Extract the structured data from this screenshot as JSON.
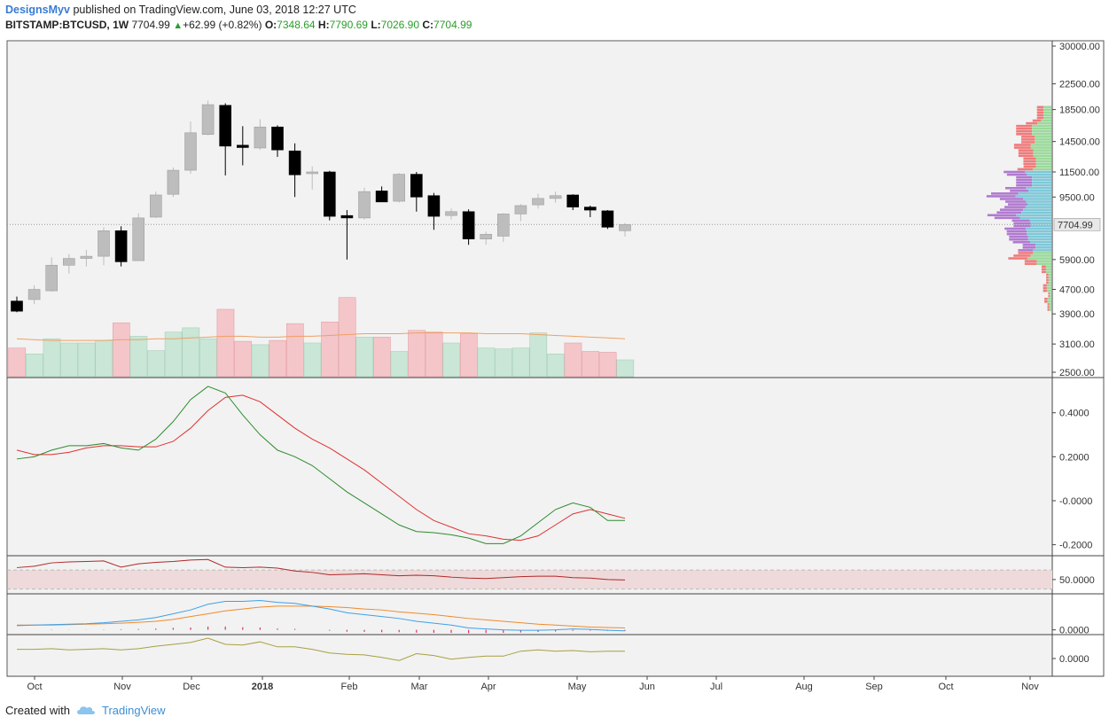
{
  "header": {
    "author": "DesignsMyv",
    "published": "published on TradingView.com, June 03, 2018 12:27 UTC",
    "symbol": "BITSTAMP:BTCUSD, 1W",
    "last": "7704.99",
    "change": "+62.99 (+0.82%)",
    "o_label": "O:",
    "o_value": "7348.64",
    "h_label": "H:",
    "h_value": "7790.69",
    "l_label": "L:",
    "l_value": "7026.90",
    "c_label": "C:",
    "c_value": "7704.99"
  },
  "footer": {
    "created_with": "Created with",
    "brand": "TradingView"
  },
  "colors": {
    "bull": "#bdbdbd",
    "bear": "#000000",
    "vol_up": "#c9e6d6",
    "vol_down": "#f4c6ca",
    "vol_ma": "#f0a060",
    "fast_line": "#2e8b2e",
    "slow_line": "#e03030",
    "rsi_line": "#b02828",
    "rsi_band": "#eedada",
    "macd": "#3ea0e8",
    "signal": "#f08a2a",
    "hist": "#e0306a",
    "osc": "#a8a040",
    "profile_up": "#9ad99a",
    "profile_down": "#f07a7a",
    "profile_va_up": "#7ec8d8",
    "profile_va_down": "#b07ad0"
  },
  "chart_data": {
    "type": "candlestick",
    "price_scale": "log",
    "price_axis_ticks": [
      "30000.00",
      "22500.00",
      "18500.00",
      "14500.00",
      "11500.00",
      "9500.00",
      "7704.99",
      "5900.00",
      "4700.00",
      "3900.00",
      "3100.00",
      "2500.00"
    ],
    "price_axis_tick_values": [
      30000,
      22500,
      18500,
      14500,
      11500,
      9500,
      5900,
      4700,
      3900,
      3100,
      2500
    ],
    "last_price": "7704.99",
    "x_axis_labels": [
      "Oct",
      "Nov",
      "Dec",
      "2018",
      "Feb",
      "Mar",
      "Apr",
      "May",
      "Jun",
      "Jul",
      "Aug",
      "Sep",
      "Oct",
      "Nov"
    ],
    "candles": [
      {
        "o": 4300,
        "h": 4450,
        "l": 3950,
        "c": 3980
      },
      {
        "o": 4350,
        "h": 4850,
        "l": 4200,
        "c": 4700
      },
      {
        "o": 4650,
        "h": 6000,
        "l": 4620,
        "c": 5650
      },
      {
        "o": 5650,
        "h": 6150,
        "l": 5300,
        "c": 5950
      },
      {
        "o": 5950,
        "h": 6350,
        "l": 5600,
        "c": 6050
      },
      {
        "o": 6050,
        "h": 7550,
        "l": 5650,
        "c": 7350
      },
      {
        "o": 7350,
        "h": 7600,
        "l": 5600,
        "c": 5800
      },
      {
        "o": 5850,
        "h": 8400,
        "l": 5850,
        "c": 8100
      },
      {
        "o": 8150,
        "h": 9900,
        "l": 8100,
        "c": 9650
      },
      {
        "o": 9700,
        "h": 11900,
        "l": 9500,
        "c": 11650
      },
      {
        "o": 11650,
        "h": 16900,
        "l": 11350,
        "c": 15500
      },
      {
        "o": 15300,
        "h": 19800,
        "l": 15200,
        "c": 19200
      },
      {
        "o": 19100,
        "h": 19400,
        "l": 11200,
        "c": 14000
      },
      {
        "o": 14100,
        "h": 16300,
        "l": 12100,
        "c": 13850
      },
      {
        "o": 13800,
        "h": 17200,
        "l": 13600,
        "c": 16200
      },
      {
        "o": 16200,
        "h": 16400,
        "l": 12900,
        "c": 13600
      },
      {
        "o": 13500,
        "h": 14300,
        "l": 9500,
        "c": 11250
      },
      {
        "o": 11350,
        "h": 12000,
        "l": 10050,
        "c": 11500
      },
      {
        "o": 11500,
        "h": 11600,
        "l": 7950,
        "c": 8200
      },
      {
        "o": 8250,
        "h": 8600,
        "l": 5900,
        "c": 8100
      },
      {
        "o": 8100,
        "h": 10200,
        "l": 8000,
        "c": 9900
      },
      {
        "o": 9950,
        "h": 10300,
        "l": 9200,
        "c": 9150
      },
      {
        "o": 9200,
        "h": 11400,
        "l": 9100,
        "c": 11300
      },
      {
        "o": 11300,
        "h": 11500,
        "l": 8500,
        "c": 9500
      },
      {
        "o": 9600,
        "h": 9800,
        "l": 7400,
        "c": 8200
      },
      {
        "o": 8250,
        "h": 8700,
        "l": 8000,
        "c": 8500
      },
      {
        "o": 8500,
        "h": 8650,
        "l": 6600,
        "c": 6900
      },
      {
        "o": 6900,
        "h": 7300,
        "l": 6600,
        "c": 7150
      },
      {
        "o": 7050,
        "h": 8400,
        "l": 6750,
        "c": 8350
      },
      {
        "o": 8350,
        "h": 9000,
        "l": 7900,
        "c": 8900
      },
      {
        "o": 8950,
        "h": 9750,
        "l": 8700,
        "c": 9400
      },
      {
        "o": 9400,
        "h": 9900,
        "l": 9100,
        "c": 9600
      },
      {
        "o": 9650,
        "h": 9700,
        "l": 8600,
        "c": 8800
      },
      {
        "o": 8800,
        "h": 8900,
        "l": 8150,
        "c": 8600
      },
      {
        "o": 8550,
        "h": 8600,
        "l": 7450,
        "c": 7550
      },
      {
        "o": 7348.64,
        "h": 7790.69,
        "l": 7026.9,
        "c": 7704.99
      }
    ],
    "volume": [
      34,
      27,
      45,
      40,
      40,
      43,
      64,
      48,
      31,
      53,
      58,
      45,
      80,
      42,
      38,
      43,
      63,
      40,
      65,
      94,
      47,
      47,
      30,
      55,
      53,
      40,
      51,
      34,
      33,
      34,
      52,
      27,
      40,
      30,
      29,
      20
    ],
    "volume_ma": [
      45,
      44,
      43,
      43,
      43,
      43,
      44,
      44,
      45,
      45,
      46,
      47,
      48,
      48,
      47,
      47,
      48,
      48,
      49,
      50,
      51,
      51,
      51,
      52,
      52,
      52,
      52,
      51,
      51,
      51,
      50,
      49,
      48,
      47,
      46,
      45
    ],
    "osc1": {
      "ticks": [
        "0.4000",
        "0.2000",
        "-0.0000",
        "-0.2000"
      ],
      "ylim": [
        -0.25,
        0.56
      ],
      "fast": [
        0.19,
        0.2,
        0.23,
        0.25,
        0.25,
        0.26,
        0.24,
        0.23,
        0.28,
        0.36,
        0.46,
        0.52,
        0.49,
        0.39,
        0.3,
        0.23,
        0.2,
        0.16,
        0.1,
        0.04,
        -0.01,
        -0.06,
        -0.11,
        -0.14,
        -0.145,
        -0.155,
        -0.17,
        -0.195,
        -0.195,
        -0.16,
        -0.1,
        -0.04,
        -0.01,
        -0.03,
        -0.09,
        -0.09
      ],
      "slow": [
        0.23,
        0.21,
        0.21,
        0.22,
        0.24,
        0.25,
        0.25,
        0.245,
        0.245,
        0.27,
        0.33,
        0.41,
        0.47,
        0.48,
        0.45,
        0.39,
        0.33,
        0.28,
        0.24,
        0.19,
        0.14,
        0.08,
        0.02,
        -0.04,
        -0.09,
        -0.12,
        -0.15,
        -0.16,
        -0.175,
        -0.18,
        -0.16,
        -0.11,
        -0.06,
        -0.04,
        -0.06,
        -0.08
      ]
    },
    "rsi": {
      "ticks": [
        "50.0000"
      ],
      "band": [
        30,
        70
      ],
      "ylim": [
        20,
        100
      ],
      "values": [
        75,
        78,
        85,
        87,
        88,
        89,
        76,
        83,
        86,
        88,
        91,
        92,
        76,
        75,
        76,
        74,
        68,
        65,
        60,
        61,
        62,
        60,
        58,
        59,
        58,
        55,
        53,
        52,
        54,
        56,
        57,
        57,
        54,
        53,
        50,
        49
      ]
    },
    "macd": {
      "ticks": [
        "0.0000"
      ],
      "ylim": [
        -0.05,
        0.38
      ],
      "macd": [
        0.045,
        0.05,
        0.055,
        0.06,
        0.065,
        0.075,
        0.09,
        0.105,
        0.13,
        0.17,
        0.21,
        0.27,
        0.3,
        0.3,
        0.31,
        0.29,
        0.28,
        0.25,
        0.22,
        0.18,
        0.16,
        0.14,
        0.12,
        0.09,
        0.07,
        0.05,
        0.02,
        0.01,
        0.0,
        -0.005,
        -0.005,
        0.0,
        0.01,
        0.005,
        -0.005,
        -0.01
      ],
      "signal": [
        0.05,
        0.05,
        0.05,
        0.055,
        0.06,
        0.065,
        0.07,
        0.08,
        0.09,
        0.11,
        0.14,
        0.17,
        0.2,
        0.22,
        0.24,
        0.25,
        0.25,
        0.25,
        0.245,
        0.235,
        0.22,
        0.21,
        0.19,
        0.175,
        0.16,
        0.14,
        0.12,
        0.105,
        0.09,
        0.075,
        0.06,
        0.05,
        0.04,
        0.03,
        0.025,
        0.02
      ],
      "hist": [
        0,
        0,
        0.01,
        0.005,
        0.005,
        0.01,
        0.02,
        0.025,
        0.04,
        0.06,
        0.07,
        0.1,
        0.1,
        0.08,
        0.07,
        0.04,
        0.03,
        0,
        -0.025,
        -0.055,
        -0.06,
        -0.07,
        -0.07,
        -0.085,
        -0.09,
        -0.09,
        -0.1,
        -0.095,
        -0.09,
        -0.08,
        -0.065,
        -0.05,
        -0.03,
        -0.025,
        -0.03,
        -0.03
      ]
    },
    "osc3": {
      "ticks": [
        "0.0000"
      ],
      "ylim": [
        -1,
        1
      ],
      "values": [
        0.1,
        0.1,
        0.15,
        0.05,
        0.1,
        0.15,
        0.05,
        0.15,
        0.35,
        0.5,
        0.65,
        1.0,
        0.5,
        0.45,
        0.7,
        0.3,
        0.3,
        0.1,
        -0.2,
        -0.3,
        -0.35,
        -0.55,
        -0.8,
        -0.25,
        -0.4,
        -0.7,
        -0.55,
        -0.45,
        -0.45,
        -0.05,
        0.05,
        -0.05,
        0.0,
        -0.1,
        -0.05,
        -0.05
      ]
    }
  }
}
